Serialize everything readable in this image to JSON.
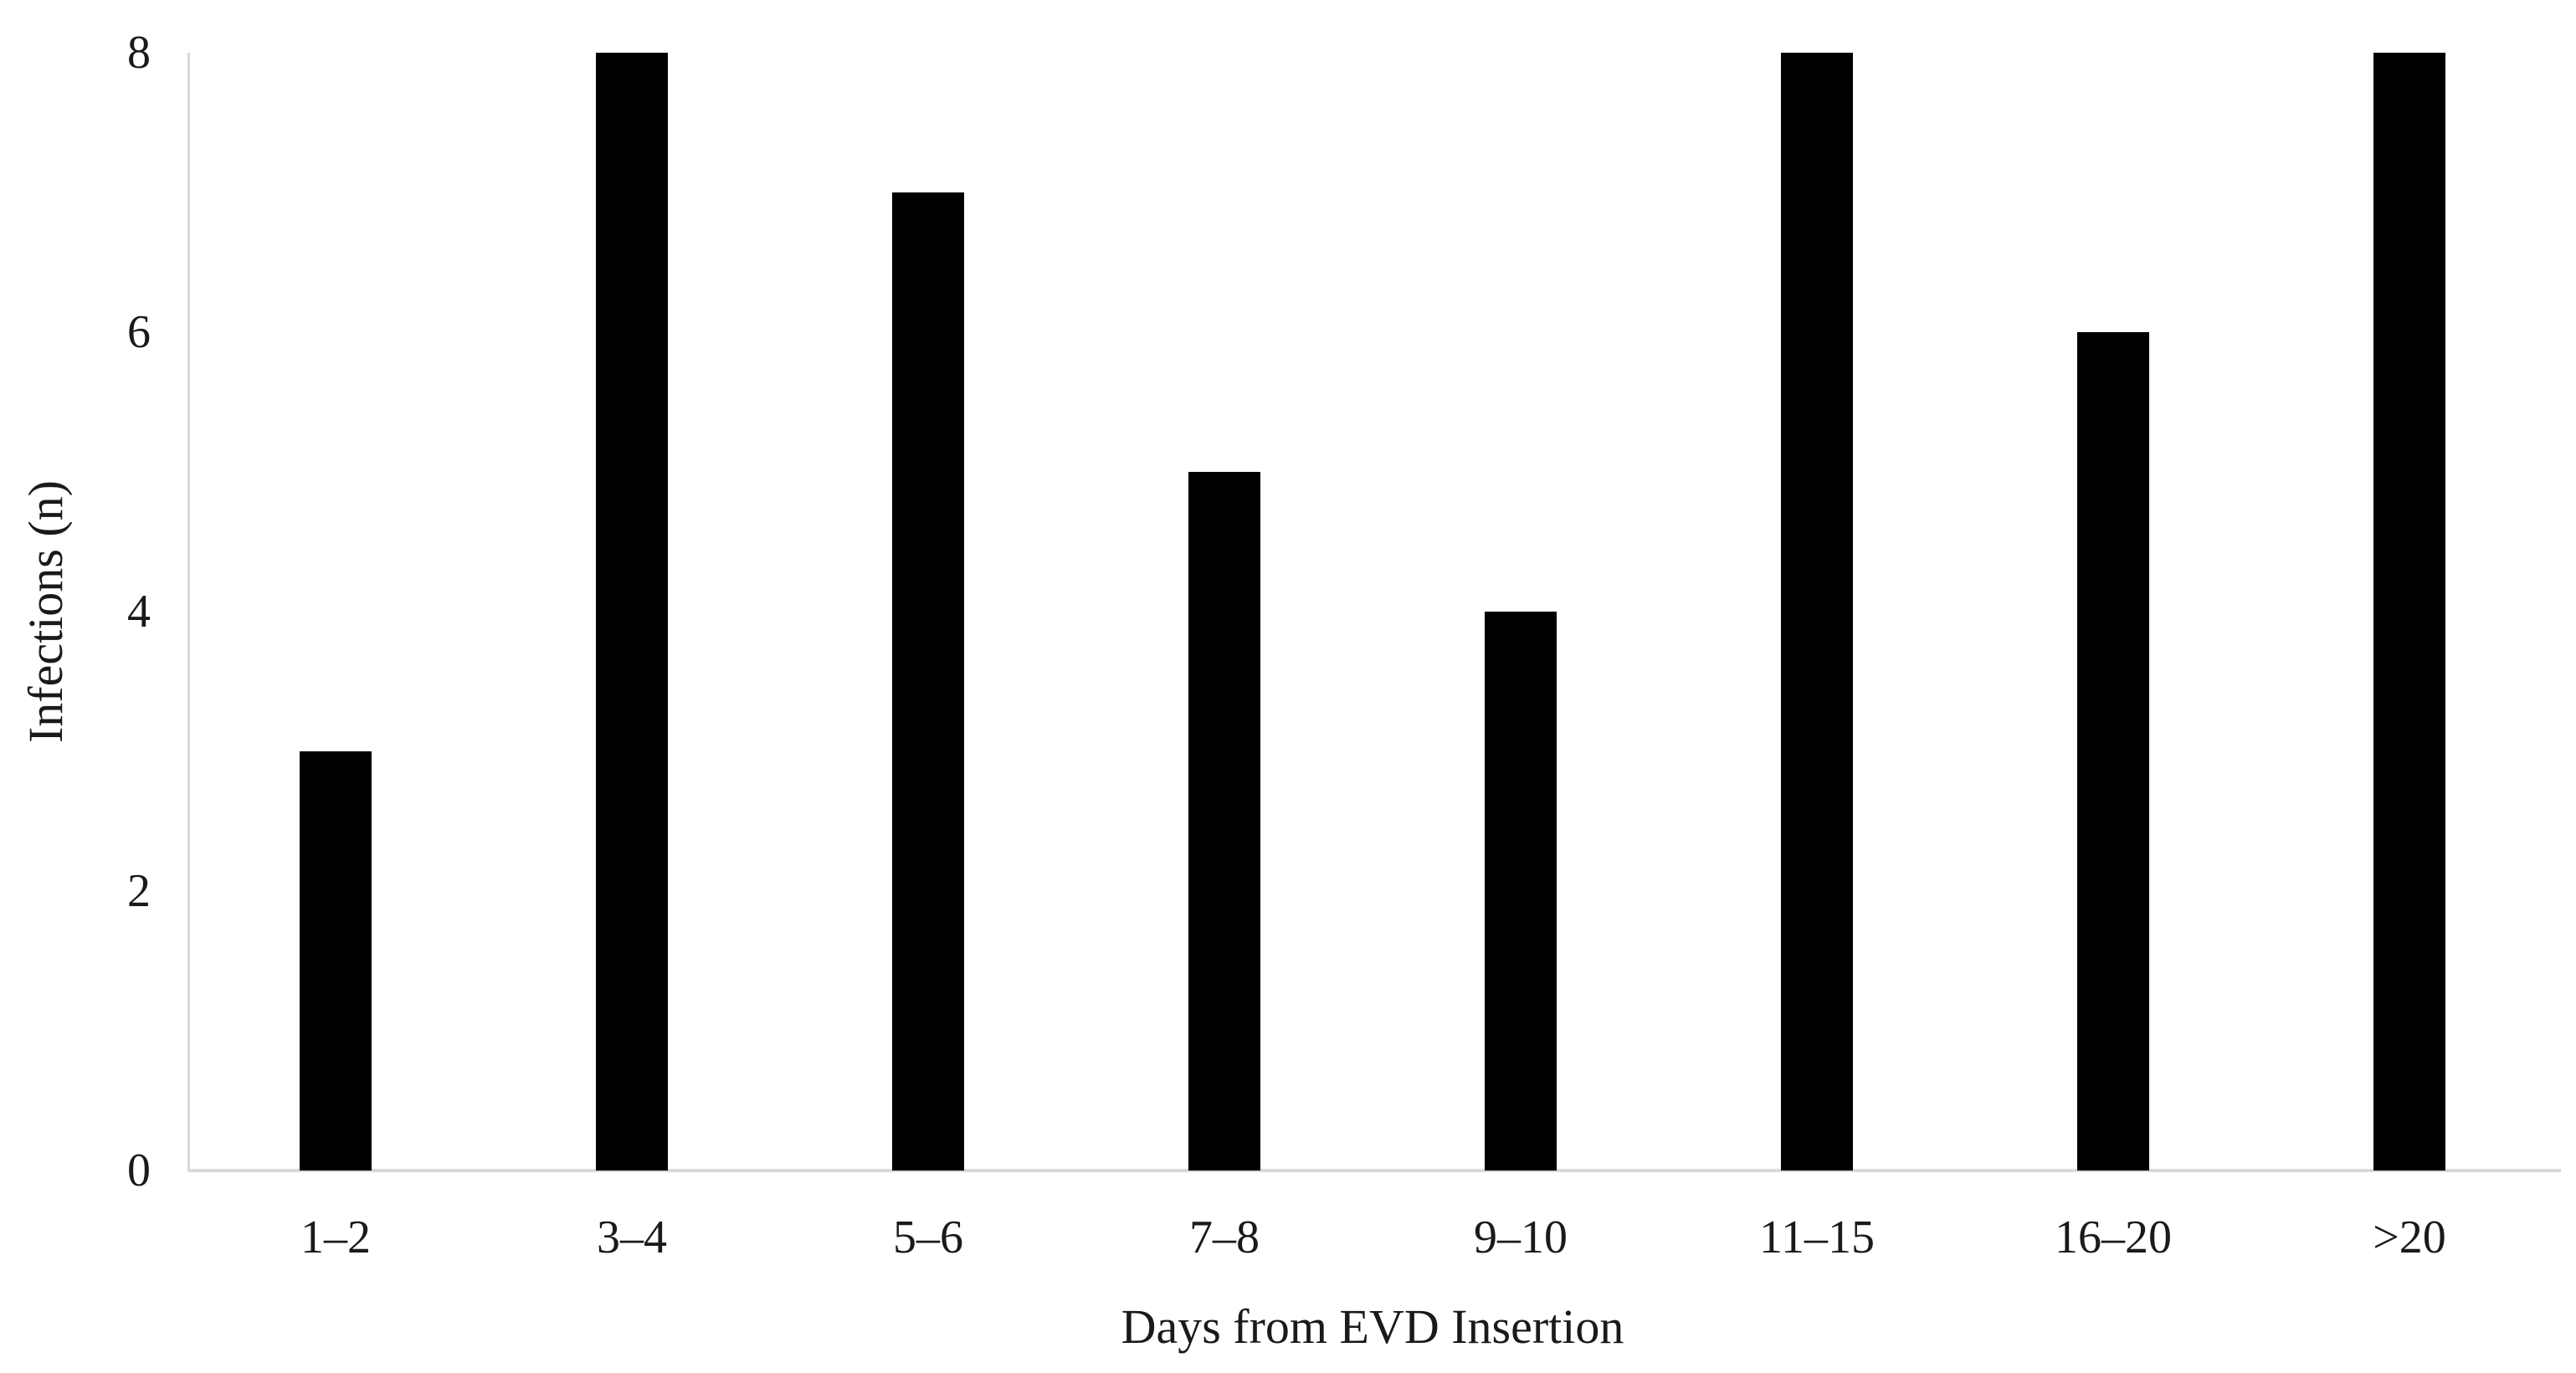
{
  "colors": {
    "bar_fill": "#000000",
    "axis_line": "#d9d9d9",
    "text": "#1a1a1a",
    "background": "#ffffff"
  },
  "chart_data": {
    "type": "bar",
    "title": "",
    "categories": [
      "1–2",
      "3–4",
      "5–6",
      "7–8",
      "9–10",
      "11–15",
      "16–20",
      ">20"
    ],
    "values": [
      3,
      8,
      7,
      5,
      4,
      8,
      6,
      8
    ],
    "xlabel": "Days from EVD Insertion",
    "ylabel": "Infections (n)",
    "ylim": [
      0,
      8
    ],
    "yticks": [
      0,
      2,
      4,
      6,
      8
    ],
    "grid": "off",
    "legend": "none",
    "series_name": "Infections"
  }
}
